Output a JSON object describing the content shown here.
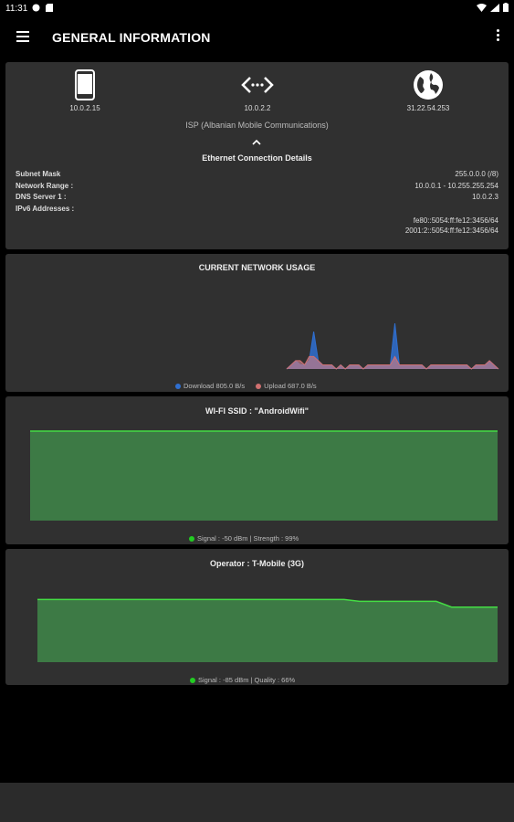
{
  "status_bar": {
    "time": "11:31"
  },
  "app_bar": {
    "title": "GENERAL INFORMATION"
  },
  "ip_summary": {
    "device_ip": "10.0.2.15",
    "gateway_ip": "10.0.2.2",
    "public_ip": "31.22.54.253",
    "isp": "ISP (Albanian Mobile Communications)"
  },
  "connection_details": {
    "title": "Ethernet Connection Details",
    "rows": [
      {
        "label": "Subnet Mask",
        "value": "255.0.0.0 (/8)"
      },
      {
        "label": "Network Range :",
        "value": "10.0.0.1 - 10.255.255.254"
      },
      {
        "label": "DNS Server 1 :",
        "value": "10.0.2.3"
      },
      {
        "label": "IPv6 Addresses :",
        "value": ""
      }
    ],
    "ipv6": [
      "fe80::5054:ff:fe12:3456/64",
      "2001:2::5054:ff:fe12:3456/64"
    ]
  },
  "network_usage": {
    "title": "CURRENT NETWORK USAGE",
    "download_label": "Download 805.0 B/s",
    "upload_label": "Upload 687.0 B/s",
    "download_color": "#2f6fd0",
    "upload_color": "#d07070"
  },
  "wifi": {
    "title": "WI-FI SSID :  \"AndroidWifi\"",
    "legend": "Signal : -50 dBm  | Strength : 99%",
    "color": "#44dd44",
    "fill": "#3d7a45"
  },
  "operator": {
    "title": "Operator : T-Mobile (3G)",
    "legend": "Signal : -85 dBm  | Quality : 66%",
    "color": "#44dd44",
    "fill": "#3d7a45"
  },
  "chart_data": [
    {
      "type": "area",
      "series": [
        {
          "name": "Download 805.0 B/s",
          "values": [
            0,
            1,
            2,
            1,
            1,
            2,
            9,
            2,
            1,
            1,
            1,
            0,
            1,
            0,
            1,
            1,
            1,
            0,
            1,
            1,
            1,
            1,
            1,
            1,
            11,
            1,
            1,
            1,
            1,
            1,
            1,
            0,
            1,
            1,
            1,
            1,
            1,
            1,
            1,
            1,
            1,
            0,
            1,
            1,
            1,
            2,
            1,
            0
          ]
        },
        {
          "name": "Upload 687.0 B/s",
          "values": [
            0,
            1,
            2,
            2,
            1,
            3,
            3,
            2,
            1,
            1,
            1,
            0,
            1,
            0,
            1,
            1,
            1,
            0,
            1,
            1,
            1,
            1,
            1,
            1,
            3,
            1,
            1,
            1,
            1,
            1,
            1,
            0,
            1,
            1,
            1,
            1,
            1,
            1,
            1,
            1,
            1,
            0,
            1,
            1,
            1,
            2,
            1,
            0
          ]
        }
      ]
    },
    {
      "type": "area",
      "series": [
        {
          "name": "Signal",
          "values": [
            99,
            99,
            99,
            99,
            99,
            99,
            99,
            99,
            99,
            99,
            99,
            99
          ]
        }
      ],
      "ylim": [
        0,
        100
      ]
    },
    {
      "type": "area",
      "series": [
        {
          "name": "Signal",
          "values": [
            66,
            66,
            66,
            66,
            66,
            66,
            66,
            66,
            66,
            66,
            66,
            66,
            66,
            66,
            66,
            66,
            66,
            66,
            66,
            66,
            66,
            64,
            64,
            64,
            64,
            64,
            64,
            58,
            58,
            58,
            58
          ]
        }
      ],
      "ylim": [
        0,
        100
      ]
    }
  ]
}
